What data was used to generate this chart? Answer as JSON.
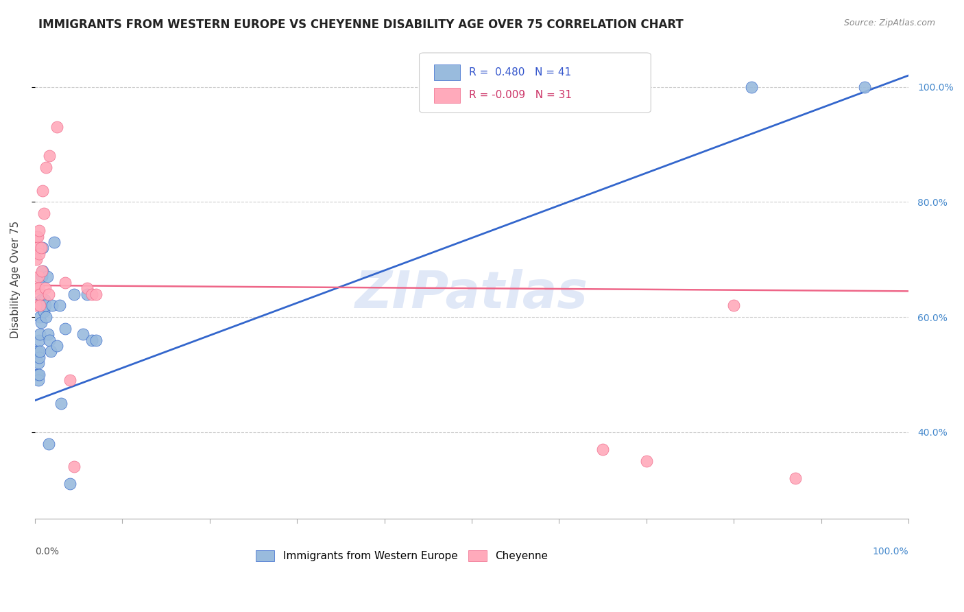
{
  "title": "IMMIGRANTS FROM WESTERN EUROPE VS CHEYENNE DISABILITY AGE OVER 75 CORRELATION CHART",
  "source": "Source: ZipAtlas.com",
  "ylabel": "Disability Age Over 75",
  "legend_label1": "Immigrants from Western Europe",
  "legend_label2": "Cheyenne",
  "r1": 0.48,
  "n1": 41,
  "r2": -0.009,
  "n2": 31,
  "watermark": "ZIPatlas",
  "blue_color": "#99bbdd",
  "pink_color": "#ffaabb",
  "blue_line_color": "#3366cc",
  "pink_line_color": "#ee6688",
  "blue_x": [
    0.001,
    0.002,
    0.003,
    0.003,
    0.004,
    0.004,
    0.005,
    0.005,
    0.005,
    0.006,
    0.006,
    0.006,
    0.007,
    0.007,
    0.008,
    0.008,
    0.009,
    0.009,
    0.01,
    0.011,
    0.012,
    0.013,
    0.014,
    0.015,
    0.016,
    0.017,
    0.018,
    0.02,
    0.022,
    0.025,
    0.028,
    0.03,
    0.035,
    0.04,
    0.045,
    0.055,
    0.06,
    0.065,
    0.07,
    0.82,
    0.95
  ],
  "blue_y": [
    0.54,
    0.5,
    0.54,
    0.5,
    0.52,
    0.49,
    0.56,
    0.53,
    0.5,
    0.6,
    0.57,
    0.54,
    0.63,
    0.59,
    0.67,
    0.63,
    0.72,
    0.68,
    0.61,
    0.63,
    0.62,
    0.6,
    0.67,
    0.57,
    0.38,
    0.56,
    0.54,
    0.62,
    0.73,
    0.55,
    0.62,
    0.45,
    0.58,
    0.31,
    0.64,
    0.57,
    0.64,
    0.56,
    0.56,
    1.0,
    1.0
  ],
  "pink_x": [
    0.001,
    0.001,
    0.002,
    0.002,
    0.003,
    0.003,
    0.004,
    0.004,
    0.005,
    0.005,
    0.006,
    0.006,
    0.007,
    0.008,
    0.009,
    0.01,
    0.012,
    0.013,
    0.016,
    0.017,
    0.025,
    0.035,
    0.04,
    0.045,
    0.06,
    0.065,
    0.07,
    0.65,
    0.7,
    0.8,
    0.87
  ],
  "pink_y": [
    0.65,
    0.62,
    0.74,
    0.7,
    0.74,
    0.72,
    0.67,
    0.65,
    0.75,
    0.71,
    0.64,
    0.62,
    0.72,
    0.68,
    0.82,
    0.78,
    0.65,
    0.86,
    0.64,
    0.88,
    0.93,
    0.66,
    0.49,
    0.34,
    0.65,
    0.64,
    0.64,
    0.37,
    0.35,
    0.62,
    0.32
  ],
  "blue_line_x0": 0.0,
  "blue_line_x1": 1.0,
  "blue_line_y0": 0.455,
  "blue_line_y1": 1.02,
  "pink_line_x0": 0.0,
  "pink_line_x1": 1.0,
  "pink_line_y0": 0.655,
  "pink_line_y1": 0.645,
  "xlim": [
    0.0,
    1.0
  ],
  "ylim": [
    0.25,
    1.08
  ],
  "yticks": [
    0.4,
    0.6,
    0.8,
    1.0
  ],
  "ytick_labels": [
    "40.0%",
    "60.0%",
    "80.0%",
    "100.0%"
  ]
}
